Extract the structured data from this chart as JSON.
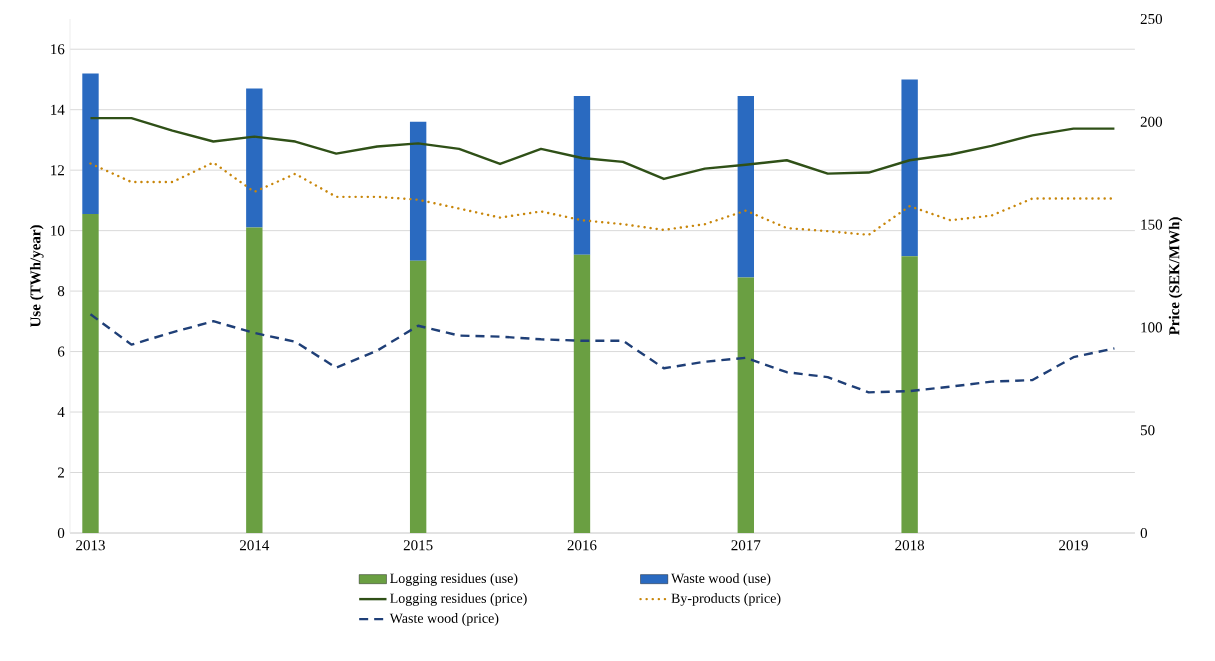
{
  "chart_data": {
    "type": "line",
    "stacked": true,
    "grid": "y",
    "legend": "bottom",
    "marker": "none",
    "ylabel": "Use (TWh/year)",
    "y2label": "Price (SEK/MWh)",
    "xlim": [
      2012.875,
      2019.375
    ],
    "xticks": [
      2013,
      2014,
      2015,
      2016,
      2017,
      2018,
      2019
    ],
    "ylim": [
      0,
      17
    ],
    "yticks": [
      0,
      2,
      4,
      6,
      8,
      10,
      12,
      14,
      16
    ],
    "y2lim": [
      0,
      250
    ],
    "y2ticks": [
      0,
      50,
      100,
      150,
      200,
      250
    ],
    "x": [
      2013,
      2013.25,
      2013.5,
      2013.75,
      2014,
      2014.25,
      2014.5,
      2014.75,
      2015,
      2015.25,
      2015.5,
      2015.75,
      2016,
      2016.25,
      2016.5,
      2016.75,
      2017,
      2017.25,
      2017.5,
      2017.75,
      2018,
      2018.25,
      2018.5,
      2018.75,
      2019,
      2019.25
    ],
    "series": [
      {
        "name": "Logging residues (use)",
        "type": "bar",
        "color": "#6a9f42",
        "x": [
          2013,
          2014,
          2015,
          2016,
          2017,
          2018
        ],
        "values": [
          10.55,
          10.1,
          9.0,
          9.2,
          8.45,
          9.15
        ]
      },
      {
        "name": "Waste wood (use)",
        "type": "bar",
        "color": "#2a6ac0",
        "x": [
          2013,
          2014,
          2015,
          2016,
          2017,
          2018
        ],
        "values": [
          4.65,
          4.6,
          4.6,
          5.25,
          6.0,
          5.85
        ]
      },
      {
        "name": "Logging residues (price)",
        "axis": "y2",
        "line_style": "solid",
        "color": "#2f5017",
        "values": [
          201.8,
          201.8,
          195.7,
          190.4,
          192.8,
          190.4,
          184.5,
          188,
          189.5,
          186.8,
          179.5,
          186.8,
          182.4,
          180.5,
          172.2,
          177.2,
          179.1,
          181.3,
          174.8,
          175.3,
          181.3,
          184.1,
          188.3,
          193.4,
          196.7,
          196.7
        ]
      },
      {
        "name": "By-products (price)",
        "axis": "y2",
        "line_style": "dotted",
        "color": "#c8860a",
        "values": [
          179.7,
          170.7,
          170.7,
          180.2,
          165.9,
          174.7,
          163.5,
          163.5,
          162.1,
          157.8,
          153.4,
          156.4,
          152.1,
          150.2,
          147.4,
          150.2,
          156.8,
          148.3,
          146.8,
          145,
          159,
          152.1,
          154.4,
          162.7,
          162.7,
          162.7
        ]
      },
      {
        "name": "Waste wood (price)",
        "axis": "y2",
        "line_style": "dashed",
        "color": "#1f3f77",
        "values": [
          106.4,
          91.6,
          97.6,
          103,
          97.3,
          93,
          80.4,
          88.7,
          100.8,
          96,
          95.5,
          94.2,
          93.5,
          93.5,
          80.1,
          83.3,
          85.2,
          78.2,
          75.8,
          68.4,
          69,
          71.2,
          73.6,
          74.4,
          85.5,
          89.8
        ]
      }
    ]
  }
}
